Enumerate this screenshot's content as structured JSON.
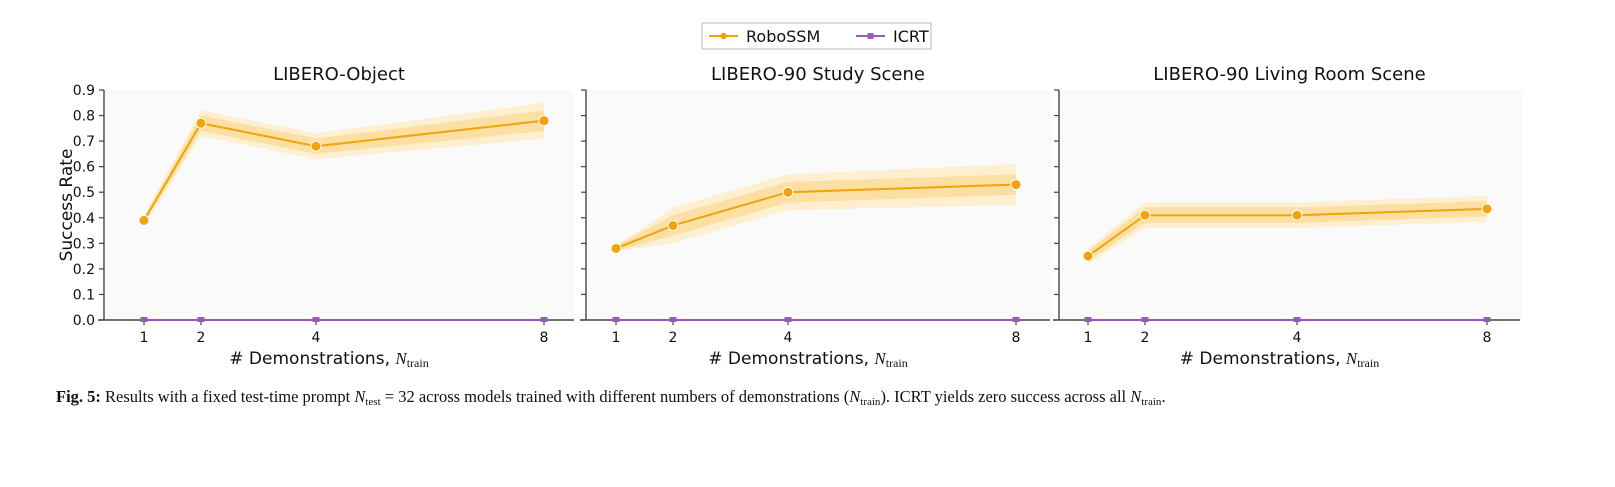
{
  "chart_data": [
    {
      "type": "line",
      "title": "LIBERO-Object",
      "xlabel": "# Demonstrations, N_train",
      "xlabel_prefix": "# Demonstrations, ",
      "xlabel_var": "N",
      "xlabel_sub": "train",
      "ylabel": "Success Rate",
      "x": [
        1,
        2,
        4,
        8
      ],
      "x_scale": "log2",
      "xticks": [
        "1",
        "2",
        "4",
        "8"
      ],
      "ylim": [
        0.0,
        0.9
      ],
      "yticks": [
        "0.0",
        "0.1",
        "0.2",
        "0.3",
        "0.4",
        "0.5",
        "0.6",
        "0.7",
        "0.8",
        "0.9"
      ],
      "grid": false,
      "series": [
        {
          "name": "RoboSSM",
          "values": [
            0.39,
            0.77,
            0.68,
            0.78
          ],
          "band_inner": [
            0.01,
            0.03,
            0.03,
            0.04
          ],
          "band_outer": [
            0.02,
            0.05,
            0.05,
            0.07
          ]
        },
        {
          "name": "ICRT",
          "values": [
            0.0,
            0.0,
            0.0,
            0.0
          ]
        }
      ]
    },
    {
      "type": "line",
      "title": "LIBERO-90 Study Scene",
      "xlabel": "# Demonstrations, N_train",
      "xlabel_prefix": "# Demonstrations, ",
      "xlabel_var": "N",
      "xlabel_sub": "train",
      "ylabel": "",
      "x": [
        1,
        2,
        4,
        8
      ],
      "x_scale": "log2",
      "xticks": [
        "1",
        "2",
        "4",
        "8"
      ],
      "ylim": [
        0.0,
        0.9
      ],
      "yticks": [],
      "grid": false,
      "series": [
        {
          "name": "RoboSSM",
          "values": [
            0.28,
            0.37,
            0.5,
            0.53
          ],
          "band_inner": [
            0.01,
            0.04,
            0.04,
            0.04
          ],
          "band_outer": [
            0.01,
            0.07,
            0.07,
            0.08
          ]
        },
        {
          "name": "ICRT",
          "values": [
            0.0,
            0.0,
            0.0,
            0.0
          ]
        }
      ]
    },
    {
      "type": "line",
      "title": "LIBERO-90 Living Room Scene",
      "xlabel": "# Demonstrations, N_train",
      "xlabel_prefix": "# Demonstrations, ",
      "xlabel_var": "N",
      "xlabel_sub": "train",
      "ylabel": "",
      "x": [
        1,
        2,
        4,
        8
      ],
      "x_scale": "log2",
      "xticks": [
        "1",
        "2",
        "4",
        "8"
      ],
      "ylim": [
        0.0,
        0.9
      ],
      "yticks": [],
      "grid": false,
      "series": [
        {
          "name": "RoboSSM",
          "values": [
            0.25,
            0.41,
            0.41,
            0.435
          ],
          "band_inner": [
            0.02,
            0.03,
            0.03,
            0.03
          ],
          "band_outer": [
            0.03,
            0.05,
            0.05,
            0.05
          ]
        },
        {
          "name": "ICRT",
          "values": [
            0.0,
            0.0,
            0.0,
            0.0
          ]
        }
      ]
    }
  ],
  "legend": {
    "placement": "top-center",
    "entries": [
      {
        "name": "RoboSSM",
        "marker": "circle",
        "color": "#f0a30a"
      },
      {
        "name": "ICRT",
        "marker": "square",
        "color": "#9b59b6"
      }
    ]
  },
  "colors": {
    "roboSSM": "#f0a30a",
    "roboSSM_band_inner": "#fbd88e",
    "roboSSM_band_outer": "#fdecc8",
    "icrt": "#9b59b6",
    "axis": "#444444",
    "plot_bg": "#fafafa"
  },
  "caption": {
    "label": "Fig. 5:",
    "text_1": " Results with a fixed test-time prompt ",
    "var_1": "N",
    "sub_1": "test",
    "text_2": " = 32 across models trained with different numbers of demonstrations (",
    "var_2": "N",
    "sub_2": "train",
    "text_3": "). ICRT yields zero success across all ",
    "var_3": "N",
    "sub_3": "train",
    "text_4": "."
  }
}
